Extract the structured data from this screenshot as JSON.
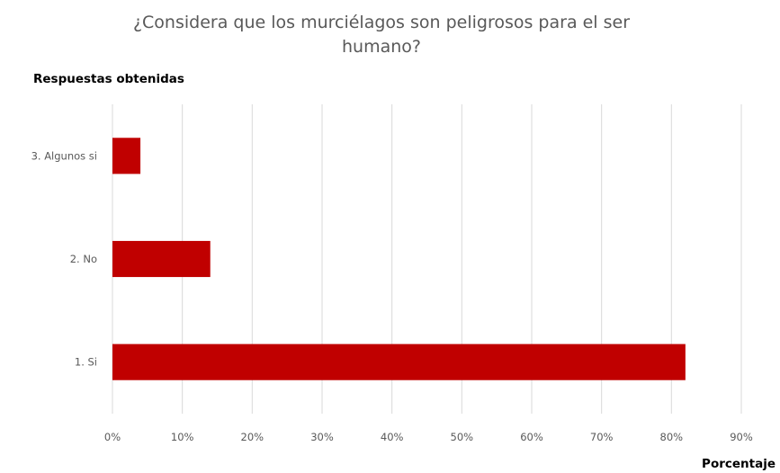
{
  "chart_data": {
    "type": "bar",
    "orientation": "horizontal",
    "title_lines": [
      "¿Considera que los murciélagos son peligrosos para el ser",
      "humano?"
    ],
    "ylabel": "Respuestas obtenidas",
    "xlabel": "Porcentaje",
    "categories": [
      "3. Algunos si",
      "2. No",
      "1. Si"
    ],
    "values": [
      4,
      14,
      82
    ],
    "xlim": [
      0,
      90
    ],
    "xticks": [
      0,
      10,
      20,
      30,
      40,
      50,
      60,
      70,
      80,
      90
    ],
    "tick_suffix": "%",
    "grid": "vertical",
    "bar_color": "#c00000"
  }
}
